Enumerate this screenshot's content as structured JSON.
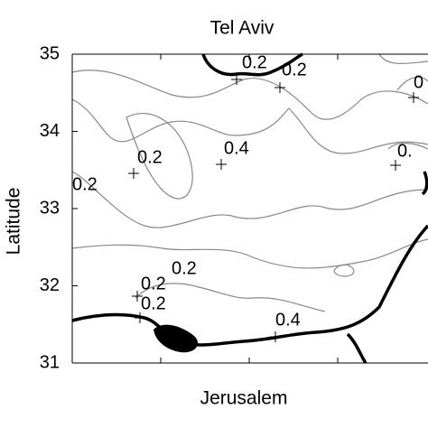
{
  "chart_data": {
    "type": "contour",
    "title": "Tel Aviv",
    "xlabel": "Jerusalem",
    "ylabel": "Latitude",
    "ylim": [
      31,
      35
    ],
    "yticks": [
      31,
      32,
      33,
      34,
      35
    ],
    "contour_labels": [
      "0.2",
      "0.2",
      "0",
      "0.2",
      "0.4",
      "0.2",
      "0.",
      "0.2",
      "0.2",
      "0.2",
      "0.4"
    ]
  }
}
